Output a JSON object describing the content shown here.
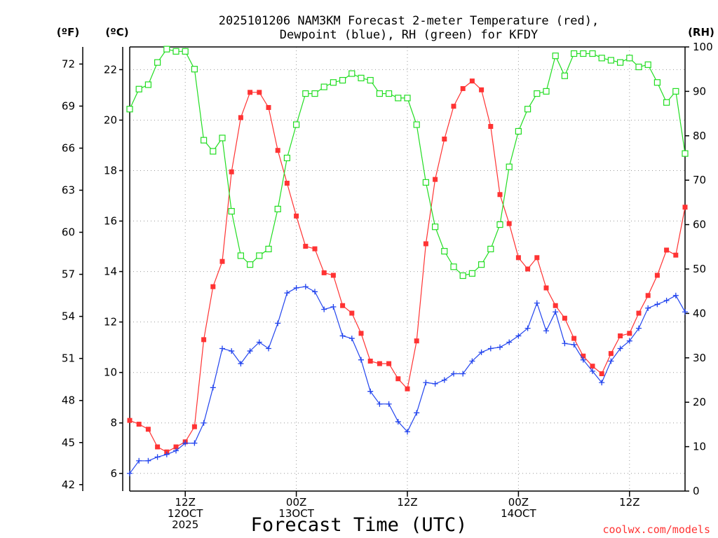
{
  "title_lines": [
    "2025101206 NAM3KM Forecast 2-meter Temperature (red),",
    "Dewpoint (blue), RH (green) for KFDY"
  ],
  "watermark": "coolwx.com/models",
  "chart_data": {
    "type": "line",
    "title": "2025101206 NAM3KM Forecast 2-meter Temperature (red), Dewpoint (blue), RH (green) for KFDY",
    "xlabel": "Forecast Time (UTC)",
    "x_unit": "forecast hour",
    "xlim": [
      0,
      60
    ],
    "x_ticks": [
      {
        "x": 6,
        "lines": [
          "12Z",
          "12OCT",
          "2025"
        ]
      },
      {
        "x": 18,
        "lines": [
          "00Z",
          "13OCT"
        ]
      },
      {
        "x": 30,
        "lines": [
          "12Z"
        ]
      },
      {
        "x": 42,
        "lines": [
          "00Z",
          "14OCT"
        ]
      },
      {
        "x": 54,
        "lines": [
          "12Z"
        ]
      }
    ],
    "left_axis_f": {
      "label": "(ºF)",
      "ticks": [
        42,
        45,
        48,
        51,
        54,
        57,
        60,
        63,
        66,
        69,
        72
      ]
    },
    "left_axis_c": {
      "label": "(ºC)",
      "ylim": [
        5.3,
        22.9
      ],
      "ticks": [
        6,
        8,
        10,
        12,
        14,
        16,
        18,
        20,
        22
      ]
    },
    "right_axis": {
      "label": "(RH)",
      "ylim": [
        0,
        100
      ],
      "ticks": [
        0,
        10,
        20,
        30,
        40,
        50,
        60,
        70,
        80,
        90,
        100
      ]
    },
    "x": [
      0,
      1,
      2,
      3,
      4,
      5,
      6,
      7,
      8,
      9,
      10,
      11,
      12,
      13,
      14,
      15,
      16,
      17,
      18,
      19,
      20,
      21,
      22,
      23,
      24,
      25,
      26,
      27,
      28,
      29,
      30,
      31,
      32,
      33,
      34,
      35,
      36,
      37,
      38,
      39,
      40,
      41,
      42,
      43,
      44,
      45,
      46,
      47,
      48,
      49,
      50,
      51,
      52,
      53,
      54,
      55,
      56,
      57,
      58,
      59,
      60
    ],
    "series": [
      {
        "name": "Temperature",
        "unit": "C",
        "axis": "celsius",
        "color": "#ff3333",
        "marker": "filled-square",
        "values": [
          8.1,
          7.95,
          7.75,
          7.05,
          6.85,
          7.05,
          7.25,
          7.85,
          11.3,
          13.4,
          14.4,
          17.95,
          20.1,
          21.1,
          21.1,
          20.5,
          18.8,
          17.5,
          16.2,
          15.0,
          14.9,
          13.95,
          13.85,
          12.65,
          12.35,
          11.55,
          10.45,
          10.35,
          10.35,
          9.75,
          9.35,
          11.25,
          15.1,
          17.65,
          19.25,
          20.55,
          21.25,
          21.55,
          21.2,
          19.75,
          17.05,
          15.9,
          14.55,
          14.1,
          14.55,
          13.35,
          12.65,
          12.15,
          11.35,
          10.65,
          10.25,
          9.95,
          10.75,
          11.45,
          11.55,
          12.35,
          13.05,
          13.85,
          14.85,
          14.65,
          16.55
        ]
      },
      {
        "name": "Dewpoint",
        "unit": "C",
        "axis": "celsius",
        "color": "#2244ee",
        "marker": "plus",
        "values": [
          6.0,
          6.5,
          6.5,
          6.65,
          6.75,
          6.9,
          7.2,
          7.2,
          8.0,
          9.4,
          10.95,
          10.85,
          10.35,
          10.85,
          11.2,
          10.95,
          11.95,
          13.15,
          13.35,
          13.4,
          13.2,
          12.5,
          12.6,
          11.45,
          11.35,
          10.5,
          9.25,
          8.75,
          8.75,
          8.05,
          7.65,
          8.4,
          9.6,
          9.55,
          9.7,
          9.95,
          9.95,
          10.45,
          10.8,
          10.95,
          11.0,
          11.2,
          11.45,
          11.75,
          12.75,
          11.65,
          12.4,
          11.15,
          11.1,
          10.5,
          10.05,
          9.6,
          10.45,
          10.95,
          11.25,
          11.75,
          12.55,
          12.7,
          12.85,
          13.05,
          12.4
        ]
      },
      {
        "name": "RH",
        "unit": "%",
        "axis": "rh",
        "color": "#22dd22",
        "marker": "open-square",
        "values": [
          86,
          90.5,
          91.5,
          96.5,
          99.5,
          99,
          99,
          95,
          79,
          76.5,
          79.5,
          63,
          53,
          51,
          53,
          54.5,
          63.5,
          75,
          82.5,
          89.5,
          89.5,
          91,
          92,
          92.5,
          94,
          93,
          92.5,
          89.5,
          89.5,
          88.5,
          88.5,
          82.5,
          69.5,
          59.5,
          54,
          50.5,
          48.5,
          49,
          51,
          54.5,
          60,
          73,
          81,
          86,
          89.5,
          90,
          98,
          93.5,
          98.5,
          98.5,
          98.5,
          97.5,
          97,
          96.5,
          97.5,
          95.5,
          96,
          92,
          87.5,
          90,
          76
        ]
      }
    ]
  }
}
